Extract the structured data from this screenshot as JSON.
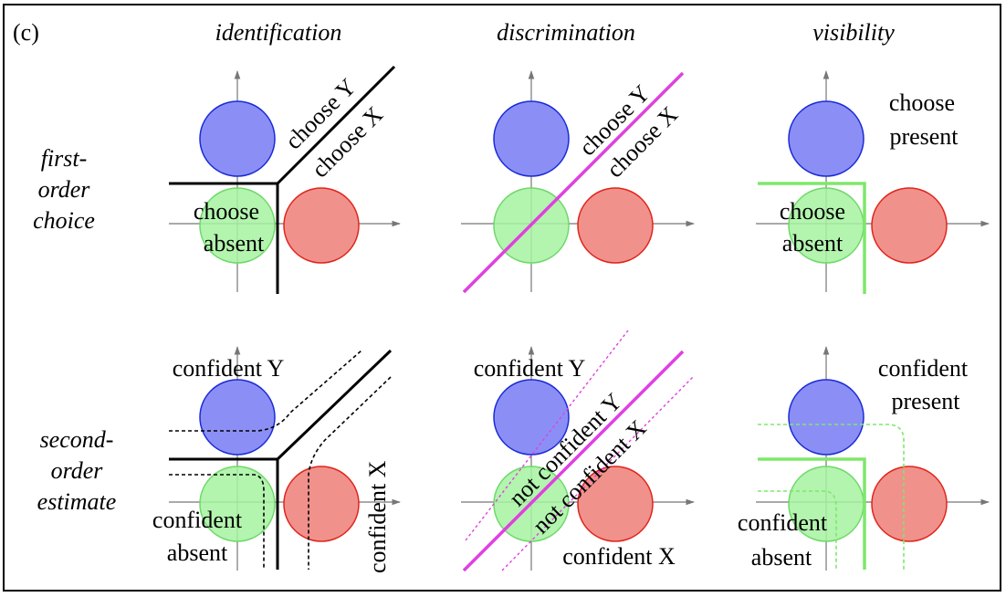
{
  "panel_label": "(c)",
  "columns": {
    "identification": "identification",
    "discrimination": "discrimination",
    "visibility": "visibility"
  },
  "rows": {
    "first": [
      "first-",
      "order",
      "choice"
    ],
    "second": [
      "second-",
      "order",
      "estimate"
    ]
  },
  "first_order": {
    "identification": {
      "choose_y": "choose Y",
      "choose_x": "choose X",
      "choose_absent": [
        "choose",
        "absent"
      ]
    },
    "discrimination": {
      "choose_y": "choose Y",
      "choose_x": "choose X"
    },
    "visibility": {
      "choose_present": [
        "choose",
        "present"
      ],
      "choose_absent": [
        "choose",
        "absent"
      ]
    }
  },
  "second_order": {
    "identification": {
      "confident_y": "confident Y",
      "confident_x": "confident X",
      "confident_absent": [
        "confident",
        "absent"
      ]
    },
    "discrimination": {
      "confident_y": "confident Y",
      "not_confident_y": "not confident Y",
      "not_confident_x": "not confident X",
      "confident_x": "confident X"
    },
    "visibility": {
      "confident_present": [
        "confident",
        "present"
      ],
      "confident_absent": [
        "confident",
        "absent"
      ]
    }
  },
  "colors": {
    "blue_fill": "#8b8ff5",
    "blue_stroke": "#1a2bd6",
    "green_fill": "#a6f2a0",
    "green_stroke": "#6fd96a",
    "red_fill": "#f0918c",
    "red_stroke": "#e0251c",
    "magenta": "#e040e0",
    "green_line": "#7de86a",
    "axis": "#777777"
  }
}
